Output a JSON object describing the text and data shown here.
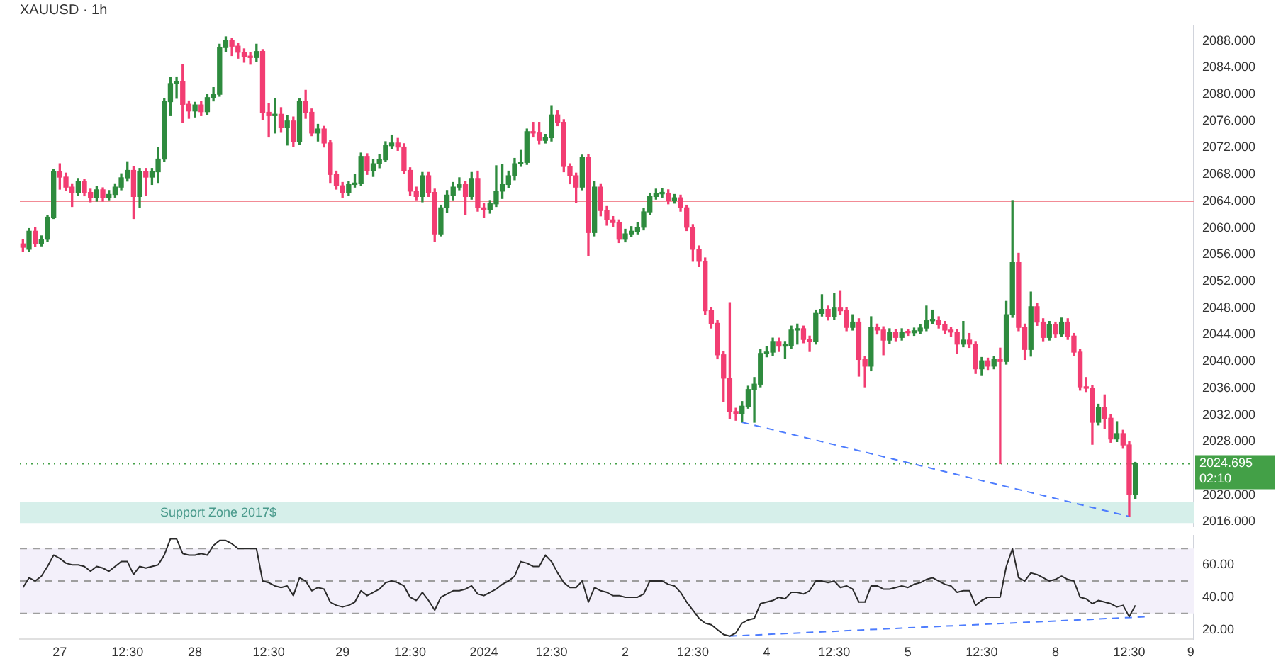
{
  "chart_data": [
    {
      "type": "candlestick",
      "title": "XAUUSD · 1h",
      "categories": [
        null,
        null,
        null,
        null,
        null,
        null,
        null,
        null,
        null,
        null,
        null,
        null,
        null,
        null,
        null,
        null,
        null,
        null,
        null,
        null,
        null,
        null,
        null,
        null,
        null,
        null,
        null,
        null,
        null,
        null,
        null,
        null,
        null,
        null,
        null,
        null,
        null,
        null,
        null,
        null,
        null,
        null,
        null,
        null,
        null,
        null,
        null,
        null,
        null,
        null,
        null,
        null,
        null,
        null,
        null,
        null,
        null,
        null,
        null,
        null,
        null,
        null,
        null,
        null,
        null,
        null,
        null,
        null,
        null,
        null,
        null,
        null,
        null,
        null,
        null,
        null,
        null,
        null,
        null,
        null,
        null,
        null,
        null,
        null,
        null,
        null,
        null,
        null,
        null,
        null,
        null,
        null,
        null,
        null,
        null,
        null,
        null,
        null,
        null,
        null,
        null,
        null,
        null,
        null,
        null,
        null,
        null,
        null,
        null,
        null,
        null,
        null,
        null,
        null,
        null,
        null,
        null,
        null,
        null,
        null,
        null,
        null,
        null,
        null,
        null,
        null,
        null,
        null,
        null,
        null,
        null,
        null,
        null,
        null,
        null,
        null,
        null,
        null,
        null,
        null,
        null,
        null,
        null,
        null,
        null,
        null,
        null,
        null,
        null,
        null,
        null,
        null,
        null,
        null,
        null,
        null,
        null,
        null,
        null,
        null,
        null,
        null,
        null,
        null,
        null,
        null,
        null,
        null,
        null,
        null,
        null,
        null,
        null,
        null,
        null,
        null,
        null,
        null,
        null,
        null,
        null,
        null,
        null,
        null,
        null,
        null,
        null,
        null,
        null,
        null,
        null
      ],
      "ohlc": [
        [
          2057.6,
          2058.2,
          2056.5,
          2057.1
        ],
        [
          2056.8,
          2059.9,
          2056.5,
          2059.5
        ],
        [
          2059.5,
          2060.0,
          2057.2,
          2057.7
        ],
        [
          2057.7,
          2058.8,
          2057.3,
          2058.3
        ],
        [
          2058.3,
          2061.9,
          2058.0,
          2061.6
        ],
        [
          2061.6,
          2068.8,
          2061.4,
          2068.4
        ],
        [
          2068.4,
          2069.6,
          2065.8,
          2067.6
        ],
        [
          2067.6,
          2068.2,
          2065.6,
          2066.1
        ],
        [
          2066.1,
          2066.6,
          2063.2,
          2065.3
        ],
        [
          2065.3,
          2067.4,
          2064.9,
          2066.9
        ],
        [
          2066.9,
          2067.3,
          2064.8,
          2065.3
        ],
        [
          2065.3,
          2065.8,
          2063.9,
          2064.5
        ],
        [
          2064.5,
          2066.2,
          2064.0,
          2065.7
        ],
        [
          2065.7,
          2066.0,
          2064.0,
          2064.5
        ],
        [
          2064.5,
          2065.6,
          2064.2,
          2065.0
        ],
        [
          2065.0,
          2066.6,
          2064.6,
          2066.1
        ],
        [
          2066.1,
          2068.1,
          2065.7,
          2067.5
        ],
        [
          2067.5,
          2069.9,
          2067.0,
          2068.6
        ],
        [
          2068.6,
          2069.2,
          2061.4,
          2064.7
        ],
        [
          2064.7,
          2068.9,
          2063.0,
          2068.4
        ],
        [
          2068.4,
          2068.9,
          2064.9,
          2067.6
        ],
        [
          2067.6,
          2068.9,
          2066.5,
          2068.4
        ],
        [
          2068.4,
          2072.0,
          2066.8,
          2070.3
        ],
        [
          2070.3,
          2079.4,
          2069.9,
          2078.9
        ],
        [
          2078.9,
          2082.5,
          2076.8,
          2081.6
        ],
        [
          2081.6,
          2082.6,
          2079.4,
          2081.9
        ],
        [
          2081.9,
          2084.5,
          2075.8,
          2078.5
        ],
        [
          2078.5,
          2079.0,
          2076.4,
          2077.5
        ],
        [
          2077.5,
          2078.8,
          2076.6,
          2078.4
        ],
        [
          2078.4,
          2078.9,
          2076.8,
          2077.4
        ],
        [
          2077.4,
          2080.0,
          2077.0,
          2079.5
        ],
        [
          2079.5,
          2081.0,
          2079.0,
          2080.0
        ],
        [
          2080.0,
          2087.5,
          2079.7,
          2087.0
        ],
        [
          2087.0,
          2088.6,
          2086.4,
          2088.0
        ],
        [
          2088.0,
          2088.4,
          2085.8,
          2087.2
        ],
        [
          2087.2,
          2087.6,
          2085.4,
          2086.3
        ],
        [
          2086.3,
          2086.8,
          2084.8,
          2085.7
        ],
        [
          2085.7,
          2086.2,
          2084.5,
          2085.5
        ],
        [
          2085.5,
          2087.5,
          2084.9,
          2086.4
        ],
        [
          2086.4,
          2086.7,
          2076.2,
          2077.3
        ],
        [
          2077.3,
          2078.6,
          2073.6,
          2076.8
        ],
        [
          2076.8,
          2079.4,
          2074.2,
          2077.0
        ],
        [
          2077.0,
          2078.0,
          2074.3,
          2075.0
        ],
        [
          2075.0,
          2076.8,
          2072.4,
          2076.0
        ],
        [
          2076.0,
          2076.6,
          2072.2,
          2072.9
        ],
        [
          2072.9,
          2079.3,
          2072.5,
          2078.9
        ],
        [
          2078.9,
          2080.6,
          2076.4,
          2077.3
        ],
        [
          2077.3,
          2077.8,
          2073.8,
          2074.2
        ],
        [
          2074.2,
          2075.5,
          2073.0,
          2074.8
        ],
        [
          2074.8,
          2075.2,
          2072.1,
          2072.7
        ],
        [
          2072.7,
          2073.1,
          2066.8,
          2068.0
        ],
        [
          2068.0,
          2068.5,
          2065.8,
          2066.3
        ],
        [
          2066.3,
          2066.8,
          2064.6,
          2065.3
        ],
        [
          2065.3,
          2067.0,
          2064.9,
          2066.5
        ],
        [
          2066.5,
          2068.0,
          2066.1,
          2066.7
        ],
        [
          2066.7,
          2071.2,
          2066.3,
          2070.7
        ],
        [
          2070.7,
          2071.1,
          2068.0,
          2068.6
        ],
        [
          2068.6,
          2070.2,
          2067.7,
          2069.6
        ],
        [
          2069.6,
          2071.0,
          2069.0,
          2070.2
        ],
        [
          2070.2,
          2072.9,
          2069.9,
          2072.3
        ],
        [
          2072.3,
          2073.9,
          2071.9,
          2072.7
        ],
        [
          2072.7,
          2073.4,
          2071.6,
          2072.1
        ],
        [
          2072.1,
          2072.6,
          2068.1,
          2068.6
        ],
        [
          2068.6,
          2069.0,
          2064.9,
          2065.5
        ],
        [
          2065.5,
          2066.1,
          2064.2,
          2064.7
        ],
        [
          2064.7,
          2068.3,
          2063.9,
          2067.8
        ],
        [
          2067.8,
          2068.3,
          2064.7,
          2065.3
        ],
        [
          2065.3,
          2065.8,
          2058.0,
          2059.1
        ],
        [
          2059.1,
          2063.4,
          2058.8,
          2063.0
        ],
        [
          2063.0,
          2065.6,
          2062.3,
          2064.9
        ],
        [
          2064.9,
          2066.8,
          2064.2,
          2066.1
        ],
        [
          2066.1,
          2067.5,
          2065.7,
          2066.5
        ],
        [
          2066.5,
          2066.9,
          2062.0,
          2064.7
        ],
        [
          2064.7,
          2068.3,
          2064.3,
          2067.4
        ],
        [
          2067.4,
          2068.5,
          2062.5,
          2063.0
        ],
        [
          2063.0,
          2063.7,
          2061.6,
          2062.7
        ],
        [
          2062.7,
          2064.1,
          2062.2,
          2063.6
        ],
        [
          2063.6,
          2069.3,
          2063.2,
          2065.5
        ],
        [
          2065.5,
          2069.5,
          2064.4,
          2066.5
        ],
        [
          2066.5,
          2068.5,
          2066.0,
          2067.8
        ],
        [
          2067.8,
          2070.4,
          2067.2,
          2069.6
        ],
        [
          2069.6,
          2071.6,
          2069.2,
          2069.8
        ],
        [
          2069.8,
          2074.8,
          2069.5,
          2074.4
        ],
        [
          2074.4,
          2075.8,
          2073.6,
          2074.2
        ],
        [
          2074.2,
          2075.8,
          2072.6,
          2073.1
        ],
        [
          2073.1,
          2074.0,
          2072.7,
          2073.5
        ],
        [
          2073.5,
          2078.3,
          2073.0,
          2076.9
        ],
        [
          2076.9,
          2077.6,
          2075.3,
          2075.8
        ],
        [
          2075.8,
          2076.2,
          2068.4,
          2069.2
        ],
        [
          2069.2,
          2069.6,
          2066.6,
          2067.8
        ],
        [
          2067.8,
          2068.2,
          2063.8,
          2066.1
        ],
        [
          2066.1,
          2070.9,
          2065.7,
          2070.5
        ],
        [
          2070.5,
          2071.0,
          2055.8,
          2059.3
        ],
        [
          2059.3,
          2067.0,
          2058.8,
          2066.1
        ],
        [
          2066.1,
          2066.6,
          2061.8,
          2062.6
        ],
        [
          2062.6,
          2063.2,
          2060.4,
          2061.2
        ],
        [
          2061.2,
          2061.7,
          2060.2,
          2060.8
        ],
        [
          2060.8,
          2061.2,
          2057.8,
          2058.3
        ],
        [
          2058.3,
          2059.8,
          2057.9,
          2059.1
        ],
        [
          2059.1,
          2060.2,
          2058.7,
          2059.5
        ],
        [
          2059.5,
          2060.8,
          2059.1,
          2060.1
        ],
        [
          2060.1,
          2062.9,
          2059.7,
          2062.4
        ],
        [
          2062.4,
          2065.2,
          2062.0,
          2064.7
        ],
        [
          2064.7,
          2065.8,
          2064.3,
          2065.1
        ],
        [
          2065.1,
          2065.9,
          2064.6,
          2065.2
        ],
        [
          2065.2,
          2065.7,
          2063.6,
          2064.1
        ],
        [
          2064.1,
          2065.0,
          2063.7,
          2064.5
        ],
        [
          2064.5,
          2064.9,
          2062.5,
          2063.0
        ],
        [
          2063.0,
          2063.4,
          2059.6,
          2060.1
        ],
        [
          2060.1,
          2060.5,
          2055.0,
          2056.8
        ],
        [
          2056.8,
          2057.3,
          2054.2,
          2055.0
        ],
        [
          2055.0,
          2055.5,
          2047.0,
          2047.6
        ],
        [
          2047.6,
          2048.1,
          2045.0,
          2045.7
        ],
        [
          2045.7,
          2046.2,
          2040.4,
          2041.0
        ],
        [
          2041.0,
          2041.5,
          2034.0,
          2037.5
        ],
        [
          2037.5,
          2048.8,
          2031.5,
          2032.5
        ],
        [
          2032.5,
          2033.0,
          2031.2,
          2032.2
        ],
        [
          2032.2,
          2034.0,
          2030.9,
          2033.3
        ],
        [
          2033.3,
          2036.3,
          2033.0,
          2035.8
        ],
        [
          2035.8,
          2037.6,
          2030.9,
          2036.6
        ],
        [
          2036.6,
          2041.8,
          2036.2,
          2041.2
        ],
        [
          2041.2,
          2042.2,
          2040.7,
          2041.4
        ],
        [
          2041.4,
          2043.5,
          2040.9,
          2043.0
        ],
        [
          2043.0,
          2043.5,
          2041.5,
          2042.3
        ],
        [
          2042.3,
          2043.0,
          2040.5,
          2042.4
        ],
        [
          2042.4,
          2045.3,
          2042.0,
          2044.7
        ],
        [
          2044.7,
          2045.6,
          2042.6,
          2044.9
        ],
        [
          2044.9,
          2045.3,
          2042.8,
          2043.3
        ],
        [
          2043.3,
          2043.8,
          2041.5,
          2043.0
        ],
        [
          2043.0,
          2047.7,
          2042.6,
          2047.2
        ],
        [
          2047.2,
          2050.0,
          2046.8,
          2047.8
        ],
        [
          2047.8,
          2048.3,
          2046.2,
          2046.7
        ],
        [
          2046.7,
          2050.2,
          2046.3,
          2048.0
        ],
        [
          2048.0,
          2050.5,
          2047.0,
          2047.6
        ],
        [
          2047.6,
          2048.1,
          2044.6,
          2045.1
        ],
        [
          2045.1,
          2047.0,
          2044.7,
          2045.9
        ],
        [
          2045.9,
          2046.4,
          2037.8,
          2040.3
        ],
        [
          2040.3,
          2040.8,
          2036.2,
          2039.3
        ],
        [
          2039.3,
          2046.7,
          2038.6,
          2045.1
        ],
        [
          2045.1,
          2045.6,
          2044.1,
          2044.7
        ],
        [
          2044.7,
          2045.2,
          2041.0,
          2043.2
        ],
        [
          2043.2,
          2044.9,
          2042.7,
          2044.3
        ],
        [
          2044.3,
          2044.8,
          2043.1,
          2043.6
        ],
        [
          2043.6,
          2044.9,
          2043.2,
          2044.4
        ],
        [
          2044.4,
          2044.8,
          2043.9,
          2044.3
        ],
        [
          2044.3,
          2045.0,
          2043.9,
          2044.6
        ],
        [
          2044.6,
          2045.5,
          2044.2,
          2045.0
        ],
        [
          2045.0,
          2048.3,
          2044.6,
          2046.1
        ],
        [
          2046.1,
          2047.7,
          2045.7,
          2046.2
        ],
        [
          2046.2,
          2046.7,
          2045.0,
          2045.5
        ],
        [
          2045.5,
          2046.0,
          2044.2,
          2044.7
        ],
        [
          2044.7,
          2045.1,
          2043.8,
          2044.4
        ],
        [
          2044.4,
          2044.8,
          2041.2,
          2042.6
        ],
        [
          2042.6,
          2046.0,
          2042.2,
          2043.2
        ],
        [
          2043.2,
          2044.2,
          2042.1,
          2042.6
        ],
        [
          2042.6,
          2043.0,
          2038.2,
          2038.9
        ],
        [
          2038.9,
          2040.6,
          2038.0,
          2040.1
        ],
        [
          2040.1,
          2040.5,
          2038.8,
          2039.3
        ],
        [
          2039.3,
          2040.8,
          2038.9,
          2040.3
        ],
        [
          2040.3,
          2042.0,
          2024.7,
          2040.0
        ],
        [
          2040.0,
          2049.0,
          2039.6,
          2047.0
        ],
        [
          2047.0,
          2064.1,
          2046.6,
          2054.8
        ],
        [
          2054.8,
          2056.2,
          2044.6,
          2045.1
        ],
        [
          2045.1,
          2045.6,
          2040.3,
          2041.8
        ],
        [
          2041.8,
          2050.4,
          2040.8,
          2048.2
        ],
        [
          2048.2,
          2048.7,
          2045.4,
          2045.9
        ],
        [
          2045.9,
          2046.4,
          2043.1,
          2043.6
        ],
        [
          2043.6,
          2046.0,
          2043.2,
          2045.5
        ],
        [
          2045.5,
          2045.9,
          2043.6,
          2044.1
        ],
        [
          2044.1,
          2046.5,
          2043.7,
          2045.9
        ],
        [
          2045.9,
          2046.4,
          2043.3,
          2043.8
        ],
        [
          2043.8,
          2044.2,
          2040.9,
          2041.4
        ],
        [
          2041.4,
          2041.8,
          2035.7,
          2036.2
        ],
        [
          2036.2,
          2037.6,
          2035.5,
          2036.0
        ],
        [
          2036.0,
          2036.4,
          2027.6,
          2030.9
        ],
        [
          2030.9,
          2033.6,
          2030.5,
          2033.1
        ],
        [
          2033.1,
          2035.0,
          2030.0,
          2031.5
        ],
        [
          2031.5,
          2032.0,
          2027.9,
          2028.4
        ],
        [
          2028.4,
          2031.0,
          2028.0,
          2029.2
        ],
        [
          2029.2,
          2029.7,
          2027.0,
          2027.5
        ],
        [
          2027.5,
          2028.0,
          2016.8,
          2020.1
        ],
        [
          2020.1,
          2024.9,
          2019.5,
          2024.695
        ],
        null,
        null,
        null,
        null,
        null,
        null,
        null,
        null,
        null
      ],
      "colors": [
        "#f23d72",
        "#2e8b3e",
        "#f23d72",
        "#2e8b3e",
        "#2e8b3e",
        "#2e8b3e",
        "#f23d72",
        "#f23d72",
        "#f23d72",
        "#2e8b3e",
        "#f23d72",
        "#f23d72",
        "#2e8b3e",
        "#f23d72",
        "#2e8b3e",
        "#2e8b3e",
        "#2e8b3e",
        "#2e8b3e",
        "#f23d72",
        "#2e8b3e",
        "#f23d72",
        "#2e8b3e",
        "#2e8b3e",
        "#2e8b3e",
        "#2e8b3e",
        "#2e8b3e",
        "#f23d72",
        "#f23d72",
        "#2e8b3e",
        "#f23d72",
        "#2e8b3e",
        "#2e8b3e",
        "#2e8b3e",
        "#2e8b3e",
        "#f23d72",
        "#f23d72",
        "#f23d72",
        "#f23d72",
        "#2e8b3e",
        "#f23d72",
        "#f23d72",
        "#2e8b3e",
        "#f23d72",
        "#2e8b3e",
        "#f23d72",
        "#2e8b3e",
        "#f23d72",
        "#f23d72",
        "#2e8b3e",
        "#f23d72",
        "#f23d72",
        "#f23d72",
        "#f23d72",
        "#2e8b3e",
        "#2e8b3e",
        "#2e8b3e",
        "#f23d72",
        "#2e8b3e",
        "#2e8b3e",
        "#2e8b3e",
        "#2e8b3e",
        "#f23d72",
        "#f23d72",
        "#f23d72",
        "#f23d72",
        "#2e8b3e",
        "#f23d72",
        "#f23d72",
        "#2e8b3e",
        "#2e8b3e",
        "#2e8b3e",
        "#2e8b3e",
        "#f23d72",
        "#2e8b3e",
        "#f23d72",
        "#f23d72",
        "#2e8b3e",
        "#2e8b3e",
        "#2e8b3e",
        "#2e8b3e",
        "#2e8b3e",
        "#2e8b3e",
        "#2e8b3e",
        "#f23d72",
        "#f23d72",
        "#2e8b3e",
        "#2e8b3e",
        "#f23d72",
        "#f23d72",
        "#f23d72",
        "#f23d72",
        "#2e8b3e",
        "#f23d72",
        "#2e8b3e",
        "#f23d72",
        "#f23d72",
        "#f23d72",
        "#f23d72",
        "#2e8b3e",
        "#2e8b3e",
        "#2e8b3e",
        "#2e8b3e",
        "#2e8b3e",
        "#2e8b3e",
        "#2e8b3e",
        "#f23d72",
        "#2e8b3e",
        "#f23d72",
        "#f23d72",
        "#f23d72",
        "#f23d72",
        "#f23d72",
        "#f23d72",
        "#f23d72",
        "#f23d72",
        "#f23d72",
        "#f23d72",
        "#2e8b3e",
        "#2e8b3e",
        "#2e8b3e",
        "#2e8b3e",
        "#2e8b3e",
        "#2e8b3e",
        "#f23d72",
        "#2e8b3e",
        "#2e8b3e",
        "#2e8b3e",
        "#f23d72",
        "#f23d72",
        "#2e8b3e",
        "#2e8b3e",
        "#f23d72",
        "#2e8b3e",
        "#f23d72",
        "#f23d72",
        "#2e8b3e",
        "#f23d72",
        "#f23d72",
        "#2e8b3e",
        "#f23d72",
        "#f23d72",
        "#2e8b3e",
        "#f23d72",
        "#2e8b3e",
        "#f23d72",
        "#2e8b3e",
        "#2e8b3e",
        "#2e8b3e",
        "#2e8b3e",
        "#f23d72",
        "#f23d72",
        "#f23d72",
        "#f23d72",
        "#2e8b3e",
        "#f23d72",
        "#f23d72",
        "#2e8b3e",
        "#f23d72",
        "#2e8b3e",
        "#f23d72",
        "#2e8b3e",
        "#2e8b3e",
        "#f23d72",
        "#f23d72",
        "#2e8b3e",
        "#f23d72",
        "#f23d72",
        "#2e8b3e",
        "#f23d72",
        "#2e8b3e",
        "#f23d72",
        "#f23d72",
        "#f23d72",
        "#f23d72",
        "#f23d72",
        "#2e8b3e",
        "#f23d72",
        "#f23d72",
        "#2e8b3e",
        "#f23d72",
        "#f23d72",
        "#2e8b3e",
        null,
        null,
        null,
        null,
        null,
        null,
        null,
        null,
        null
      ],
      "series": [
        {
          "type": "line",
          "color": "#4d7cfe",
          "line_style": "dashed",
          "values": [
            null,
            null,
            null,
            null,
            null,
            null,
            null,
            null,
            null,
            null,
            null,
            null,
            null,
            null,
            null,
            null,
            null,
            null,
            null,
            null,
            null,
            null,
            null,
            null,
            null,
            null,
            null,
            null,
            null,
            null,
            null,
            null,
            null,
            null,
            null,
            null,
            null,
            null,
            null,
            null,
            null,
            null,
            null,
            null,
            null,
            null,
            null,
            null,
            null,
            null,
            null,
            null,
            null,
            null,
            null,
            null,
            null,
            null,
            null,
            null,
            null,
            null,
            null,
            null,
            null,
            null,
            null,
            null,
            null,
            null,
            null,
            null,
            null,
            null,
            null,
            null,
            null,
            null,
            null,
            null,
            null,
            null,
            null,
            null,
            null,
            null,
            null,
            null,
            null,
            null,
            null,
            null,
            null,
            null,
            null,
            null,
            null,
            null,
            null,
            null,
            null,
            null,
            null,
            null,
            null,
            null,
            null,
            null,
            null,
            null,
            null,
            null,
            null,
            null,
            null,
            null,
            null,
            2030.9,
            null,
            null,
            null,
            null,
            null,
            null,
            null,
            null,
            null,
            null,
            null,
            null,
            null,
            null,
            null,
            null,
            null,
            null,
            null,
            null,
            null,
            null,
            null,
            null,
            null,
            null,
            null,
            null,
            null,
            null,
            null,
            null,
            null,
            null,
            null,
            null,
            null,
            null,
            null,
            null,
            null,
            null,
            null,
            null,
            null,
            null,
            null,
            null,
            null,
            null,
            null,
            null,
            null,
            null,
            null,
            null,
            null,
            null,
            null,
            null,
            null,
            null,
            2016.8,
            null,
            null,
            null,
            null,
            null,
            null,
            null,
            null,
            null,
            null
          ]
        }
      ],
      "ylim": [
        2015.2,
        2090.3
      ],
      "yticks": [
        {
          "value": 2016,
          "label": "2016.000"
        },
        {
          "value": 2020,
          "label": "2020.000"
        },
        {
          "value": 2028,
          "label": "2028.000"
        },
        {
          "value": 2032,
          "label": "2032.000"
        },
        {
          "value": 2036,
          "label": "2036.000"
        },
        {
          "value": 2040,
          "label": "2040.000"
        },
        {
          "value": 2044,
          "label": "2044.000"
        },
        {
          "value": 2048,
          "label": "2048.000"
        },
        {
          "value": 2052,
          "label": "2052.000"
        },
        {
          "value": 2056,
          "label": "2056.000"
        },
        {
          "value": 2060,
          "label": "2060.000"
        },
        {
          "value": 2064,
          "label": "2064.000"
        },
        {
          "value": 2068,
          "label": "2068.000"
        },
        {
          "value": 2072,
          "label": "2072.000"
        },
        {
          "value": 2076,
          "label": "2076.000"
        },
        {
          "value": 2080,
          "label": "2080.000"
        },
        {
          "value": 2084,
          "label": "2084.000"
        },
        {
          "value": 2088,
          "label": "2088.000"
        }
      ],
      "tick_labels": "y",
      "grid": false,
      "legend": false,
      "ref_lines": [
        {
          "axis": "y",
          "value": 2064,
          "color": "#f28b95"
        },
        {
          "axis": "y",
          "value": 2024.695,
          "label": "2024.695",
          "color": "#43a047",
          "line_style": "dotted"
        }
      ],
      "bands": [
        {
          "axis": "y",
          "from": 2015.8,
          "to": 2018.9,
          "label": "Support Zone 2017$",
          "color": "#d6efea"
        }
      ],
      "annotations": [
        "02:10"
      ]
    },
    {
      "type": "line",
      "categories": [
        null,
        null,
        null,
        null,
        null,
        null,
        "27",
        null,
        null,
        null,
        null,
        null,
        null,
        null,
        null,
        null,
        null,
        "12:30",
        null,
        null,
        null,
        null,
        null,
        null,
        null,
        null,
        null,
        null,
        "28",
        null,
        null,
        null,
        null,
        null,
        null,
        null,
        null,
        null,
        null,
        null,
        "12:30",
        null,
        null,
        null,
        null,
        null,
        null,
        null,
        null,
        null,
        null,
        null,
        "29",
        null,
        null,
        null,
        null,
        null,
        null,
        null,
        null,
        null,
        null,
        "12:30",
        null,
        null,
        null,
        null,
        null,
        null,
        null,
        null,
        null,
        null,
        null,
        "2024",
        null,
        null,
        null,
        null,
        null,
        null,
        null,
        null,
        null,
        null,
        "12:30",
        null,
        null,
        null,
        null,
        null,
        null,
        null,
        null,
        null,
        null,
        null,
        "2",
        null,
        null,
        null,
        null,
        null,
        null,
        null,
        null,
        null,
        null,
        "12:30",
        null,
        null,
        null,
        null,
        null,
        null,
        null,
        null,
        null,
        null,
        null,
        "4",
        null,
        null,
        null,
        null,
        null,
        null,
        null,
        null,
        null,
        null,
        "12:30",
        null,
        null,
        null,
        null,
        null,
        null,
        null,
        null,
        null,
        null,
        null,
        "5",
        null,
        null,
        null,
        null,
        null,
        null,
        null,
        null,
        null,
        null,
        null,
        "12:30",
        null,
        null,
        null,
        null,
        null,
        null,
        null,
        null,
        null,
        null,
        null,
        "8",
        null,
        null,
        null,
        null,
        null,
        null,
        null,
        null,
        null,
        null,
        null,
        "12:30",
        null,
        null,
        null,
        null,
        null,
        null,
        null,
        null,
        null,
        "9"
      ],
      "series": [
        {
          "color": "#2b2b2b",
          "values": [
            46,
            52,
            50,
            53,
            59,
            66,
            64,
            61,
            60,
            60,
            59,
            56,
            59,
            58,
            56,
            59,
            62,
            62,
            54,
            59,
            58,
            59,
            60,
            66,
            76,
            76,
            67,
            66,
            66,
            67,
            66,
            72,
            75,
            75,
            73,
            70,
            70,
            70,
            70,
            50,
            49,
            47,
            46,
            47,
            41,
            52,
            50,
            44,
            46,
            45,
            37,
            35,
            34,
            35,
            37,
            44,
            41,
            43,
            45,
            49,
            50,
            49,
            47,
            40,
            38,
            43,
            38,
            32,
            40,
            42,
            44,
            44,
            45,
            47,
            42,
            41,
            43,
            45,
            48,
            50,
            53,
            62,
            61,
            59,
            59,
            66,
            62,
            55,
            49,
            46,
            46,
            50,
            37,
            46,
            44,
            43,
            41,
            41,
            40,
            40,
            40,
            42,
            50,
            50,
            50,
            48,
            47,
            43,
            37,
            32,
            27,
            24,
            23,
            20,
            17,
            16,
            18,
            24,
            26,
            27,
            36,
            37,
            38,
            40,
            39,
            43,
            43,
            42,
            44,
            50,
            50,
            49,
            50,
            46,
            47,
            45,
            37,
            37,
            47,
            47,
            45,
            45,
            46,
            47,
            46,
            48,
            49,
            51,
            52,
            50,
            48,
            47,
            43,
            44,
            44,
            35,
            38,
            40,
            40,
            40,
            59,
            70,
            52,
            50,
            55,
            54,
            52,
            50,
            51,
            53,
            51,
            50,
            40,
            39,
            36,
            38,
            37,
            36,
            34,
            35,
            28,
            35,
            null,
            null,
            null,
            null,
            null,
            null,
            null,
            null,
            null
          ]
        },
        {
          "color": "#4d7cfe",
          "line_style": "dashed",
          "values": [
            null,
            null,
            null,
            null,
            null,
            null,
            null,
            null,
            null,
            null,
            null,
            null,
            null,
            null,
            null,
            null,
            null,
            null,
            null,
            null,
            null,
            null,
            null,
            null,
            null,
            null,
            null,
            null,
            null,
            null,
            null,
            null,
            null,
            null,
            null,
            null,
            null,
            null,
            null,
            null,
            null,
            null,
            null,
            null,
            null,
            null,
            null,
            null,
            null,
            null,
            null,
            null,
            null,
            null,
            null,
            null,
            null,
            null,
            null,
            null,
            null,
            null,
            null,
            null,
            null,
            null,
            null,
            null,
            null,
            null,
            null,
            null,
            null,
            null,
            null,
            null,
            null,
            null,
            null,
            null,
            null,
            null,
            null,
            null,
            null,
            null,
            null,
            null,
            null,
            null,
            null,
            null,
            null,
            null,
            null,
            null,
            null,
            null,
            null,
            null,
            null,
            null,
            null,
            null,
            null,
            null,
            null,
            null,
            null,
            null,
            null,
            null,
            null,
            null,
            null,
            16,
            null,
            null,
            null,
            null,
            null,
            null,
            null,
            null,
            null,
            null,
            null,
            null,
            null,
            null,
            null,
            null,
            null,
            null,
            null,
            null,
            null,
            null,
            null,
            null,
            null,
            null,
            null,
            null,
            null,
            null,
            null,
            null,
            null,
            null,
            null,
            null,
            null,
            null,
            null,
            null,
            null,
            null,
            null,
            null,
            null,
            null,
            null,
            null,
            null,
            null,
            null,
            null,
            null,
            null,
            null,
            null,
            null,
            null,
            null,
            null,
            null,
            null,
            null,
            null,
            null,
            null,
            null,
            28,
            null,
            null,
            null,
            null,
            null,
            null,
            null
          ]
        }
      ],
      "ylim": [
        14,
        78
      ],
      "yticks": [
        {
          "value": 20,
          "label": "20.00"
        },
        {
          "value": 40,
          "label": "40.00"
        },
        {
          "value": 60,
          "label": "60.00"
        }
      ],
      "grid": false,
      "legend": false,
      "ref_lines": [
        {
          "axis": "y",
          "value": 70,
          "color": "#9e9e9e",
          "line_style": "dashed"
        },
        {
          "axis": "y",
          "value": 50,
          "color": "#9e9e9e",
          "line_style": "dashed"
        },
        {
          "axis": "y",
          "value": 30,
          "color": "#9e9e9e",
          "line_style": "dashed"
        }
      ],
      "bands": [
        {
          "axis": "y",
          "from": 30,
          "to": 70,
          "color": "#f3f0fa"
        }
      ]
    }
  ]
}
